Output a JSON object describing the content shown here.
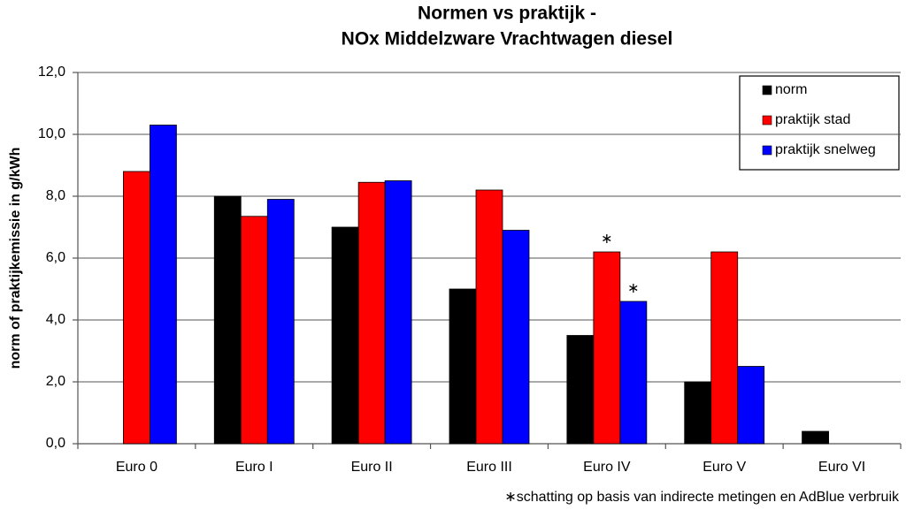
{
  "chart_data": {
    "type": "bar",
    "title": [
      "Normen vs praktijk -",
      "NOx Middelzware Vrachtwagen diesel"
    ],
    "y_label": "norm of praktijkemissie in g/kWh",
    "categories": [
      "Euro 0",
      "Euro I",
      "Euro II",
      "Euro III",
      "Euro IV",
      "Euro V",
      "Euro VI"
    ],
    "series": [
      {
        "name": "norm",
        "color": "#000000",
        "values": [
          null,
          8.0,
          7.0,
          5.0,
          3.5,
          2.0,
          0.4
        ]
      },
      {
        "name": "praktijk stad",
        "color": "#ff0000",
        "values": [
          8.8,
          7.35,
          8.45,
          8.2,
          6.2,
          6.2,
          null
        ]
      },
      {
        "name": "praktijk snelweg",
        "color": "#0000ff",
        "values": [
          10.3,
          7.9,
          8.5,
          6.9,
          4.6,
          2.5,
          null
        ]
      }
    ],
    "ylim": [
      0,
      12
    ],
    "yticks": [
      {
        "value": 0,
        "label": "0,0"
      },
      {
        "value": 2,
        "label": "2,0"
      },
      {
        "value": 4,
        "label": "4,0"
      },
      {
        "value": 6,
        "label": "6,0"
      },
      {
        "value": 8,
        "label": "8,0"
      },
      {
        "value": 10,
        "label": "10,0"
      },
      {
        "value": 12,
        "label": "12,0"
      }
    ],
    "grid": true,
    "legend": "top-right",
    "annotations": [
      "∗",
      "∗"
    ],
    "footnote": "∗schatting op basis van indirecte metingen en AdBlue verbruik"
  }
}
